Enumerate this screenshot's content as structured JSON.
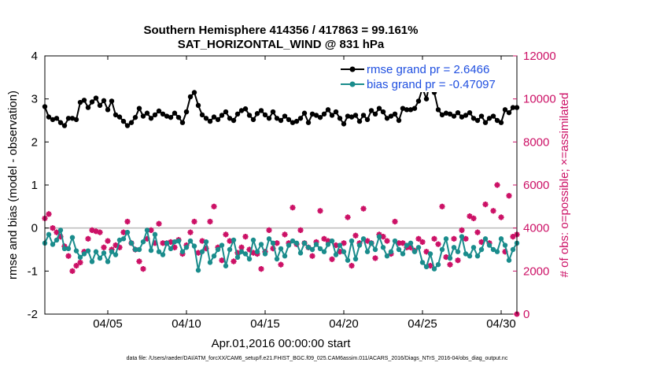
{
  "chart_data": {
    "type": "line",
    "title": "Southern Hemisphere 414356 / 417863 = 99.161%",
    "subtitle": "SAT_HORIZONTAL_WIND @ 831 hPa",
    "xlabel": "Apr.01,2016 00:00:00 start",
    "ylabel_left": "rmse and bias (model - observation)",
    "ylabel_right": "# of obs: o=possible; ×=assimilated",
    "xlim": [
      1,
      31
    ],
    "ylim_left": [
      -2,
      4
    ],
    "ylim_right": [
      0,
      12000
    ],
    "x_tick_values": [
      5,
      10,
      15,
      20,
      25,
      30
    ],
    "x_tick_labels": [
      "04/05",
      "04/10",
      "04/15",
      "04/20",
      "04/25",
      "04/30"
    ],
    "y_left_ticks": [
      -2,
      -1,
      0,
      1,
      2,
      3,
      4
    ],
    "y_left_tick_labels": [
      "-2",
      "-1",
      "0",
      "1",
      "2",
      "3",
      "4"
    ],
    "y_right_ticks": [
      0,
      2000,
      4000,
      6000,
      8000,
      10000,
      12000
    ],
    "y_right_tick_labels": [
      "0",
      "2000",
      "4000",
      "6000",
      "8000",
      "10000",
      "12000"
    ],
    "zero_line": 0,
    "legend": {
      "placement": "top-right",
      "entries": [
        "rmse grand pr = 2.6466",
        "bias grand pr = -0.47097"
      ]
    },
    "colors": {
      "rmse": "#000000",
      "bias": "#1a8c8c",
      "obs": "#cc1166",
      "zero_line": "#bbbbbb",
      "legend_text": "#1f4fe0"
    },
    "x": [
      1.0,
      1.25,
      1.5,
      1.75,
      2.0,
      2.25,
      2.5,
      2.75,
      3.0,
      3.25,
      3.5,
      3.75,
      4.0,
      4.25,
      4.5,
      4.75,
      5.0,
      5.25,
      5.5,
      5.75,
      6.0,
      6.25,
      6.5,
      6.75,
      7.0,
      7.25,
      7.5,
      7.75,
      8.0,
      8.25,
      8.5,
      8.75,
      9.0,
      9.25,
      9.5,
      9.75,
      10.0,
      10.25,
      10.5,
      10.75,
      11.0,
      11.25,
      11.5,
      11.75,
      12.0,
      12.25,
      12.5,
      12.75,
      13.0,
      13.25,
      13.5,
      13.75,
      14.0,
      14.25,
      14.5,
      14.75,
      15.0,
      15.25,
      15.5,
      15.75,
      16.0,
      16.25,
      16.5,
      16.75,
      17.0,
      17.25,
      17.5,
      17.75,
      18.0,
      18.25,
      18.5,
      18.75,
      19.0,
      19.25,
      19.5,
      19.75,
      20.0,
      20.25,
      20.5,
      20.75,
      21.0,
      21.25,
      21.5,
      21.75,
      22.0,
      22.25,
      22.5,
      22.75,
      23.0,
      23.25,
      23.5,
      23.75,
      24.0,
      24.25,
      24.5,
      24.75,
      25.0,
      25.25,
      25.5,
      25.75,
      26.0,
      26.25,
      26.5,
      26.75,
      27.0,
      27.25,
      27.5,
      27.75,
      28.0,
      28.25,
      28.5,
      28.75,
      29.0,
      29.25,
      29.5,
      29.75,
      30.0,
      30.25,
      30.5,
      30.75,
      31.0
    ],
    "series": [
      {
        "name": "rmse",
        "values": [
          2.82,
          2.58,
          2.52,
          2.55,
          2.45,
          2.38,
          2.55,
          2.55,
          2.52,
          2.92,
          2.97,
          2.8,
          2.93,
          3.02,
          2.85,
          2.96,
          2.75,
          2.95,
          2.63,
          2.58,
          2.48,
          2.38,
          2.45,
          2.57,
          2.78,
          2.6,
          2.67,
          2.55,
          2.63,
          2.72,
          2.65,
          2.6,
          2.57,
          2.67,
          2.57,
          2.45,
          2.7,
          3.05,
          3.15,
          2.85,
          2.63,
          2.55,
          2.48,
          2.58,
          2.52,
          2.62,
          2.7,
          2.55,
          2.5,
          2.65,
          2.73,
          2.77,
          2.62,
          2.52,
          2.66,
          2.73,
          2.63,
          2.55,
          2.7,
          2.55,
          2.5,
          2.6,
          2.52,
          2.45,
          2.48,
          2.55,
          2.67,
          2.45,
          2.65,
          2.62,
          2.57,
          2.65,
          2.75,
          2.62,
          2.7,
          2.55,
          2.42,
          2.6,
          2.58,
          2.62,
          2.48,
          2.62,
          2.52,
          2.73,
          2.65,
          2.78,
          2.7,
          2.55,
          2.6,
          2.65,
          2.5,
          2.78,
          2.75,
          2.75,
          2.78,
          2.95,
          3.25,
          3.0,
          3.45,
          3.15,
          2.75,
          2.63,
          2.67,
          2.65,
          2.6,
          2.68,
          2.58,
          2.62,
          2.68,
          2.55,
          2.5,
          2.6,
          2.45,
          2.55,
          2.6,
          2.5,
          2.45,
          2.75,
          2.68,
          2.8,
          2.8
        ]
      },
      {
        "name": "bias",
        "values": [
          -0.35,
          -0.15,
          -0.38,
          -0.28,
          -0.05,
          -0.48,
          -0.48,
          -0.22,
          -0.53,
          -0.68,
          -0.6,
          -0.53,
          -0.78,
          -0.55,
          -0.7,
          -0.58,
          -0.78,
          -0.55,
          -0.62,
          -0.28,
          -0.25,
          -0.1,
          -0.35,
          -0.5,
          -0.5,
          -0.32,
          -0.05,
          -0.52,
          -0.15,
          -0.55,
          -0.62,
          -0.35,
          -0.48,
          -0.32,
          -0.3,
          -0.55,
          -0.45,
          -0.3,
          -0.42,
          -0.98,
          -0.55,
          -0.32,
          -0.8,
          -0.65,
          -0.5,
          -0.4,
          -0.88,
          -0.5,
          -0.28,
          -0.68,
          -0.55,
          -0.6,
          -0.72,
          -0.28,
          -0.55,
          -0.38,
          -0.6,
          -0.25,
          -0.35,
          -0.72,
          -0.48,
          -0.65,
          -0.4,
          -0.3,
          -0.35,
          -0.58,
          -0.35,
          -0.45,
          -0.5,
          -0.38,
          -0.48,
          -0.55,
          -0.38,
          -0.3,
          -0.62,
          -0.4,
          -0.55,
          -0.75,
          -0.3,
          -0.72,
          -0.4,
          -0.25,
          -0.55,
          -0.35,
          -0.5,
          -0.2,
          -0.45,
          -0.65,
          -0.55,
          -0.3,
          -0.5,
          -0.6,
          -0.4,
          -0.35,
          -0.55,
          -0.45,
          -0.8,
          -0.9,
          -0.6,
          -0.95,
          -0.85,
          -0.5,
          -0.25,
          -0.7,
          -0.45,
          -0.55,
          -0.2,
          -0.6,
          -0.65,
          -0.45,
          -0.65,
          -0.5,
          -0.25,
          -0.4,
          -0.5,
          -0.55,
          -0.25,
          -0.4,
          -0.75,
          -0.5,
          -0.35
        ]
      },
      {
        "name": "obs",
        "values": [
          4450,
          4650,
          4000,
          3800,
          3600,
          3150,
          2700,
          2000,
          2250,
          2400,
          2900,
          3500,
          3900,
          3850,
          3800,
          3100,
          3400,
          3000,
          3200,
          3100,
          3800,
          4300,
          3300,
          3000,
          2450,
          2100,
          3500,
          3900,
          3300,
          4200,
          3300,
          3300,
          3350,
          3100,
          3450,
          2800,
          3200,
          3800,
          4300,
          2850,
          3400,
          3050,
          4300,
          5000,
          3100,
          2500,
          3700,
          3400,
          2450,
          2850,
          3100,
          3600,
          3000,
          2850,
          2800,
          2100,
          2900,
          3900,
          3050,
          3300,
          2300,
          3700,
          3300,
          4950,
          3250,
          3900,
          3300,
          3100,
          2700,
          3350,
          4800,
          3500,
          3400,
          2550,
          3200,
          2900,
          3300,
          4500,
          2250,
          3650,
          3300,
          4900,
          3400,
          3300,
          2600,
          3700,
          3600,
          3400,
          2800,
          4300,
          3300,
          3300,
          3100,
          3100,
          2950,
          3500,
          3350,
          2900,
          2250,
          3500,
          3250,
          5000,
          2650,
          2300,
          3500,
          2500,
          3900,
          3500,
          4550,
          4450,
          3800,
          3350,
          5100,
          3300,
          4800,
          6000,
          4500,
          2900,
          5500,
          3600,
          3700
        ]
      }
    ],
    "obs_zero_marker": {
      "x": 31,
      "value": 0
    }
  },
  "footnote": "data file: /Users/raeder/DAI/ATM_forcXX/CAM6_setup/f.e21.FHIST_BGC.f09_025.CAM6assim.011/ACARS_2016/Diags_NTrS_2016-04/obs_diag_output.nc"
}
